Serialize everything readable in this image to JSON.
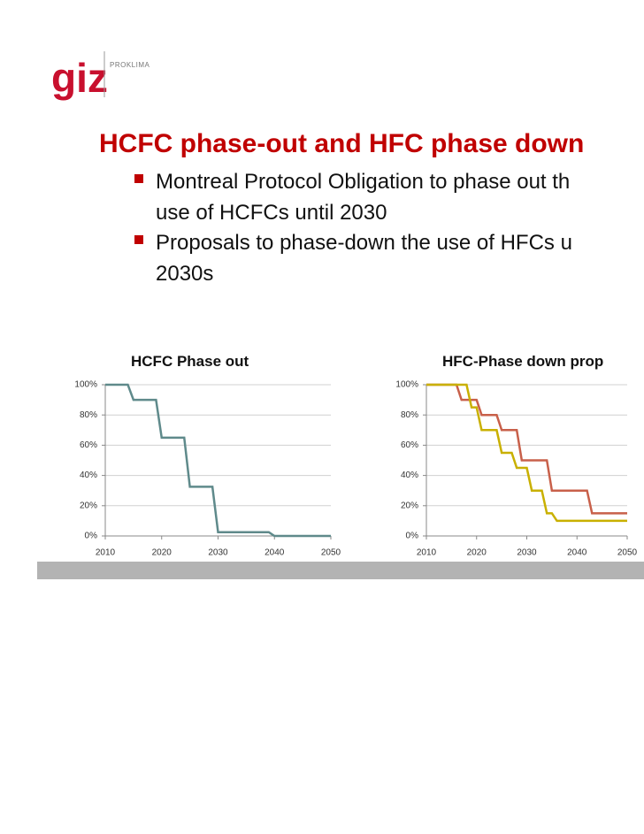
{
  "header": {
    "logo": "giz",
    "logo_subtext": "PROKLIMA"
  },
  "title": "HCFC phase-out and HFC phase down",
  "bullets": [
    [
      "Montreal Protocol Obligation to phase out th",
      "use of HCFCs until 2030"
    ],
    [
      "Proposals to phase-down the use of HFCs u",
      "2030s"
    ]
  ],
  "chart_data": [
    {
      "type": "line",
      "title": "HCFC Phase out",
      "xlim": [
        2010,
        2050
      ],
      "xticks": [
        2010,
        2020,
        2030,
        2040,
        2050
      ],
      "ylim": [
        0,
        100
      ],
      "yticks": [
        {
          "value": 0,
          "label": "0%"
        },
        {
          "value": 20,
          "label": "20%"
        },
        {
          "value": 40,
          "label": "40%"
        },
        {
          "value": 60,
          "label": "60%"
        },
        {
          "value": 80,
          "label": "80%"
        },
        {
          "value": 100,
          "label": "100%"
        }
      ],
      "grid": true,
      "series": [
        {
          "color": "#5f8a8b",
          "x": [
            2010,
            2014,
            2015,
            2019,
            2020,
            2024,
            2025,
            2029,
            2030,
            2039,
            2040,
            2050
          ],
          "values": [
            100,
            100,
            90,
            90,
            65,
            65,
            32.5,
            32.5,
            2.5,
            2.5,
            0,
            0
          ]
        }
      ]
    },
    {
      "type": "line",
      "title": "HFC-Phase down prop",
      "xlim": [
        2010,
        2050
      ],
      "xticks": [
        2010,
        2020,
        2030,
        2040,
        2050
      ],
      "ylim": [
        0,
        100
      ],
      "yticks": [
        {
          "value": 0,
          "label": "0%"
        },
        {
          "value": 20,
          "label": "20%"
        },
        {
          "value": 40,
          "label": "40%"
        },
        {
          "value": 60,
          "label": "60%"
        },
        {
          "value": 80,
          "label": "80%"
        },
        {
          "value": 100,
          "label": "100%"
        }
      ],
      "grid": true,
      "series": [
        {
          "color": "#c8604a",
          "x": [
            2010,
            2016,
            2017,
            2020,
            2021,
            2024,
            2025,
            2028,
            2029,
            2034,
            2035,
            2042,
            2043,
            2050
          ],
          "values": [
            100,
            100,
            90,
            90,
            80,
            80,
            70,
            70,
            50,
            50,
            30,
            30,
            15,
            15
          ]
        },
        {
          "color": "#c9b000",
          "x": [
            2010,
            2018,
            2019,
            2020,
            2021,
            2024,
            2025,
            2027,
            2028,
            2030,
            2031,
            2033,
            2034,
            2035,
            2036,
            2050
          ],
          "values": [
            100,
            100,
            85,
            85,
            70,
            70,
            55,
            55,
            45,
            45,
            30,
            30,
            15,
            15,
            10,
            10
          ]
        }
      ]
    }
  ]
}
